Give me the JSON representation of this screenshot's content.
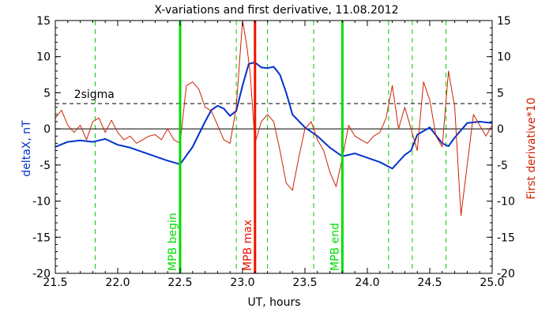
{
  "chart_data": {
    "type": "line",
    "title": "X-variations and first derivative, 11.08.2012",
    "xlabel": "UT, hours",
    "ylabel": "deltaX, nT",
    "y2label": "First derivative*10",
    "xlim": [
      21.5,
      25.0
    ],
    "ylim": [
      -20,
      15
    ],
    "y2lim": [
      -20,
      15
    ],
    "x_ticks": [
      21.5,
      22.0,
      22.5,
      23.0,
      23.5,
      24.0,
      24.5,
      25.0
    ],
    "x_tick_labels": [
      "21.5",
      "22.0",
      "22.5",
      "23.0",
      "23.5",
      "24.0",
      "24.5",
      "25.0"
    ],
    "y_ticks": [
      -20,
      -15,
      -10,
      -5,
      0,
      5,
      10,
      15
    ],
    "y_tick_labels": [
      "-20",
      "-15",
      "-10",
      "-5",
      "0",
      "5",
      "10",
      "15"
    ],
    "y2_ticks": [
      -20,
      -15,
      -10,
      -5,
      0,
      5,
      10,
      15
    ],
    "y2_tick_labels": [
      "-20",
      "-15",
      "-10",
      "-5",
      "0",
      "5",
      "10",
      "15"
    ],
    "grid": false,
    "sigma_level": 3.5,
    "sigma_label": "2sigma",
    "zero_level": 0,
    "series": [
      {
        "axis": "left",
        "color": "#0033cc",
        "x": [
          21.5,
          21.6,
          21.7,
          21.8,
          21.9,
          22.0,
          22.1,
          22.2,
          22.3,
          22.4,
          22.5,
          22.6,
          22.7,
          22.75,
          22.8,
          22.85,
          22.9,
          22.95,
          23.0,
          23.05,
          23.1,
          23.15,
          23.2,
          23.25,
          23.3,
          23.35,
          23.4,
          23.5,
          23.6,
          23.7,
          23.8,
          23.9,
          24.0,
          24.1,
          24.2,
          24.3,
          24.35,
          24.4,
          24.5,
          24.6,
          24.65,
          24.7,
          24.8,
          24.9,
          25.0
        ],
        "values": [
          -2.5,
          -1.8,
          -1.6,
          -1.8,
          -1.4,
          -2.2,
          -2.6,
          -3.2,
          -3.8,
          -4.4,
          -4.9,
          -2.5,
          1.0,
          2.6,
          3.2,
          2.8,
          1.8,
          2.5,
          6.0,
          9.0,
          9.2,
          8.5,
          8.4,
          8.6,
          7.5,
          5.0,
          2.0,
          0.2,
          -1.0,
          -2.6,
          -3.8,
          -3.4,
          -4.0,
          -4.6,
          -5.5,
          -3.6,
          -3.0,
          -0.8,
          0.2,
          -2.0,
          -2.4,
          -1.2,
          0.8,
          1.0,
          0.8
        ]
      },
      {
        "axis": "right",
        "color": "#cc2200",
        "x": [
          21.5,
          21.55,
          21.6,
          21.65,
          21.7,
          21.75,
          21.8,
          21.85,
          21.9,
          21.95,
          22.0,
          22.05,
          22.1,
          22.15,
          22.2,
          22.25,
          22.3,
          22.35,
          22.4,
          22.45,
          22.5,
          22.55,
          22.6,
          22.65,
          22.7,
          22.75,
          22.8,
          22.85,
          22.9,
          22.95,
          23.0,
          23.03,
          23.06,
          23.1,
          23.15,
          23.2,
          23.25,
          23.3,
          23.35,
          23.4,
          23.45,
          23.5,
          23.55,
          23.6,
          23.65,
          23.7,
          23.75,
          23.8,
          23.85,
          23.9,
          23.95,
          24.0,
          24.05,
          24.1,
          24.15,
          24.2,
          24.25,
          24.3,
          24.35,
          24.4,
          24.45,
          24.5,
          24.55,
          24.6,
          24.65,
          24.7,
          24.75,
          24.8,
          24.85,
          24.9,
          24.95,
          25.0
        ],
        "values": [
          1.5,
          2.6,
          0.5,
          -0.5,
          0.5,
          -1.5,
          1.0,
          1.5,
          -0.5,
          1.2,
          -0.5,
          -1.5,
          -1.0,
          -2.0,
          -1.5,
          -1.0,
          -0.8,
          -1.5,
          0.0,
          -1.5,
          -2.0,
          6.0,
          6.5,
          5.5,
          3.0,
          2.5,
          0.5,
          -1.5,
          -2.0,
          3.0,
          15.0,
          12.0,
          8.0,
          -2.0,
          1.0,
          2.0,
          1.0,
          -3.0,
          -7.5,
          -8.5,
          -4.0,
          0.0,
          1.0,
          -1.5,
          -3.0,
          -6.0,
          -8.0,
          -4.0,
          0.5,
          -1.0,
          -1.5,
          -2.0,
          -1.0,
          -0.5,
          1.5,
          6.0,
          0.0,
          3.0,
          0.0,
          -3.0,
          6.5,
          4.0,
          -1.0,
          -2.5,
          8.0,
          3.0,
          -12.0,
          -5.0,
          2.0,
          0.5,
          -1.0,
          0.5
        ]
      }
    ],
    "markers": [
      {
        "x": 22.5,
        "label": "MPB begin",
        "color": "#00dd00",
        "style": "solid"
      },
      {
        "x": 23.1,
        "label": "MPB max",
        "color": "#ee1100",
        "style": "solid"
      },
      {
        "x": 23.8,
        "label": "MPB end",
        "color": "#00dd00",
        "style": "solid"
      }
    ],
    "dashed_markers": {
      "color": "#00cc00",
      "x": [
        21.82,
        22.95,
        23.2,
        23.57,
        24.17,
        24.36,
        24.63
      ]
    }
  }
}
